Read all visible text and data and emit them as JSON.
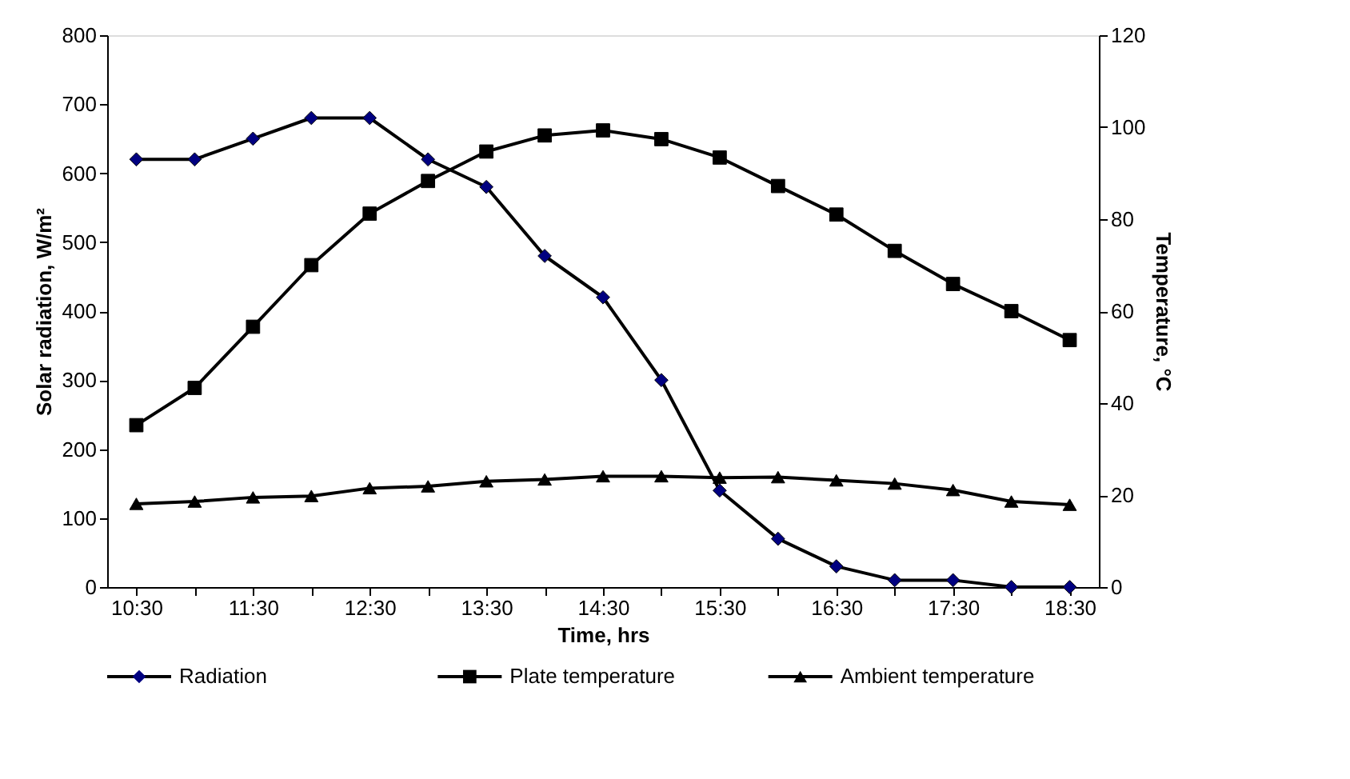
{
  "chart_data": {
    "type": "line",
    "xlabel": "Time, hrs",
    "ylabel": "Solar radiation, W/m²",
    "y2label": "Temperature, °C",
    "categories": [
      "10:30",
      null,
      "11:30",
      null,
      "12:30",
      null,
      "13:30",
      null,
      "14:30",
      null,
      "15:30",
      null,
      "16:30",
      null,
      "17:30",
      null,
      "18:30"
    ],
    "series": [
      {
        "name": "Radiation",
        "color": "#000080",
        "marker": "diamond",
        "values": [
          620,
          620,
          650,
          680,
          680,
          620,
          580,
          480,
          420,
          300,
          140,
          70,
          30,
          10,
          10,
          0,
          0
        ]
      },
      {
        "name": "Plate temperature",
        "color": "#000000",
        "marker": "square",
        "axis": "y2",
        "values": [
          35.2,
          43.3,
          56.6,
          70,
          81.2,
          88.3,
          94.7,
          98.2,
          99.3,
          97.4,
          93.4,
          87.2,
          81,
          73.1,
          65.9,
          60,
          53.7
        ]
      },
      {
        "name": "Ambient temperature",
        "color": "#000000",
        "marker": "triangle",
        "axis": "y2",
        "values": [
          18.1,
          18.6,
          19.5,
          19.8,
          21.5,
          21.9,
          23,
          23.4,
          24.1,
          24.1,
          23.8,
          23.9,
          23.2,
          22.5,
          21.1,
          18.6,
          17.9
        ]
      }
    ],
    "ylim": [
      0,
      800
    ],
    "yticks": [
      0,
      100,
      200,
      300,
      400,
      500,
      600,
      700,
      800
    ],
    "y2lim": [
      0,
      120
    ],
    "y2ticks": [
      0,
      20,
      40,
      60,
      80,
      100,
      120
    ],
    "grid": false,
    "legend": "bottom"
  }
}
